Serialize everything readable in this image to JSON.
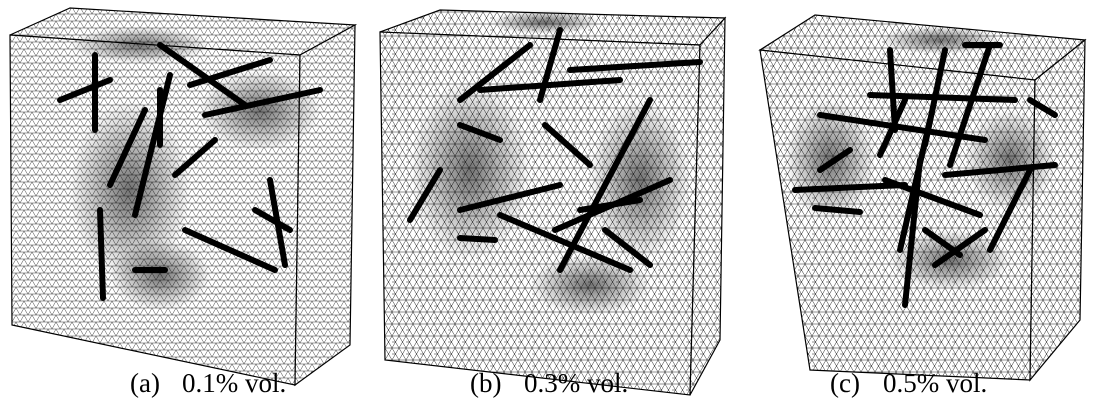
{
  "panels": [
    {
      "label": "(a)",
      "caption": "0.1% vol."
    },
    {
      "label": "(b)",
      "caption": "0.3% vol."
    },
    {
      "label": "(c)",
      "caption": "0.5% vol."
    }
  ]
}
